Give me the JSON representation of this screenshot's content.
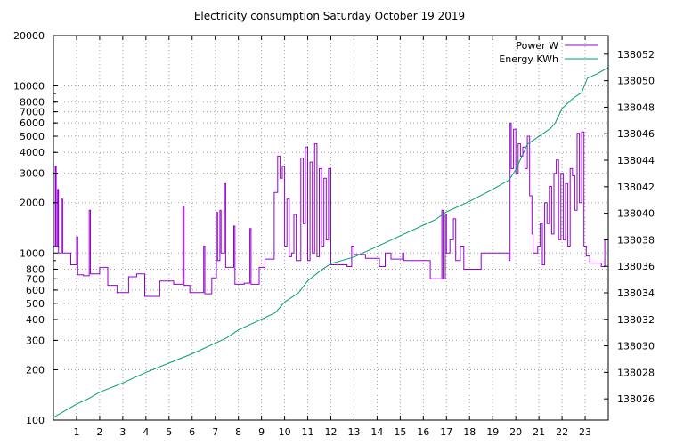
{
  "chart_data": {
    "type": "line",
    "title": "Electricity consumption Saturday October 19 2019",
    "xlabel": "",
    "ylabel": "",
    "y2label": "",
    "grid": true,
    "legend_position": "top-right",
    "xlim": [
      0,
      24
    ],
    "ylim": [
      100,
      20000
    ],
    "y_scale": "log",
    "y2lim": [
      138024.4,
      138053.4
    ],
    "x_ticks": [
      1,
      2,
      3,
      4,
      5,
      6,
      7,
      8,
      9,
      10,
      11,
      12,
      13,
      14,
      15,
      16,
      17,
      18,
      19,
      20,
      21,
      22,
      23
    ],
    "y_ticks": [
      {
        "value": 100,
        "label": "100"
      },
      {
        "value": 200,
        "label": "200"
      },
      {
        "value": 300,
        "label": "300"
      },
      {
        "value": 400,
        "label": "400"
      },
      {
        "value": 500,
        "label": "500"
      },
      {
        "value": 600,
        "label": "600"
      },
      {
        "value": 700,
        "label": "700"
      },
      {
        "value": 800,
        "label": "800"
      },
      {
        "value": 1000,
        "label": "1000"
      },
      {
        "value": 2000,
        "label": "2000"
      },
      {
        "value": 3000,
        "label": "3000"
      },
      {
        "value": 4000,
        "label": "4000"
      },
      {
        "value": 5000,
        "label": "5000"
      },
      {
        "value": 6000,
        "label": "6000"
      },
      {
        "value": 7000,
        "label": "7000"
      },
      {
        "value": 8000,
        "label": "8000"
      },
      {
        "value": 10000,
        "label": "10000"
      },
      {
        "value": 20000,
        "label": "20000"
      }
    ],
    "y2_ticks": [
      138026,
      138028,
      138030,
      138032,
      138034,
      138036,
      138038,
      138040,
      138042,
      138044,
      138046,
      138048,
      138050,
      138052
    ],
    "series": [
      {
        "name": "Power W",
        "axis": "left",
        "color": "#9400d3",
        "style": "step",
        "points": [
          [
            0.0,
            1100
          ],
          [
            0.08,
            3300
          ],
          [
            0.12,
            1100
          ],
          [
            0.18,
            2400
          ],
          [
            0.22,
            1000
          ],
          [
            0.35,
            2100
          ],
          [
            0.4,
            1000
          ],
          [
            0.55,
            1000
          ],
          [
            0.75,
            850
          ],
          [
            1.0,
            1250
          ],
          [
            1.05,
            740
          ],
          [
            1.3,
            730
          ],
          [
            1.55,
            1800
          ],
          [
            1.6,
            750
          ],
          [
            2.0,
            820
          ],
          [
            2.35,
            640
          ],
          [
            2.75,
            580
          ],
          [
            3.25,
            720
          ],
          [
            3.6,
            750
          ],
          [
            3.95,
            550
          ],
          [
            4.6,
            680
          ],
          [
            5.2,
            650
          ],
          [
            5.6,
            1900
          ],
          [
            5.65,
            640
          ],
          [
            5.9,
            580
          ],
          [
            6.5,
            1100
          ],
          [
            6.55,
            570
          ],
          [
            6.85,
            710
          ],
          [
            7.05,
            1750
          ],
          [
            7.1,
            900
          ],
          [
            7.2,
            1800
          ],
          [
            7.25,
            1000
          ],
          [
            7.4,
            2600
          ],
          [
            7.45,
            820
          ],
          [
            7.8,
            1450
          ],
          [
            7.85,
            650
          ],
          [
            8.25,
            660
          ],
          [
            8.5,
            1400
          ],
          [
            8.55,
            650
          ],
          [
            8.9,
            820
          ],
          [
            9.15,
            920
          ],
          [
            9.55,
            2300
          ],
          [
            9.7,
            3800
          ],
          [
            9.8,
            2800
          ],
          [
            9.9,
            3300
          ],
          [
            10.0,
            1100
          ],
          [
            10.1,
            2100
          ],
          [
            10.2,
            950
          ],
          [
            10.3,
            1000
          ],
          [
            10.4,
            1700
          ],
          [
            10.5,
            900
          ],
          [
            10.7,
            3700
          ],
          [
            10.8,
            1500
          ],
          [
            10.9,
            4300
          ],
          [
            11.0,
            900
          ],
          [
            11.1,
            3500
          ],
          [
            11.2,
            1000
          ],
          [
            11.3,
            4500
          ],
          [
            11.4,
            950
          ],
          [
            11.5,
            3200
          ],
          [
            11.6,
            1100
          ],
          [
            11.7,
            2800
          ],
          [
            11.8,
            1200
          ],
          [
            11.9,
            3200
          ],
          [
            12.0,
            850
          ],
          [
            12.7,
            830
          ],
          [
            12.9,
            1100
          ],
          [
            13.0,
            980
          ],
          [
            13.5,
            930
          ],
          [
            14.1,
            830
          ],
          [
            14.35,
            1000
          ],
          [
            14.6,
            920
          ],
          [
            15.1,
            1000
          ],
          [
            15.15,
            900
          ],
          [
            15.6,
            900
          ],
          [
            16.1,
            900
          ],
          [
            16.3,
            700
          ],
          [
            16.8,
            1800
          ],
          [
            16.85,
            700
          ],
          [
            16.95,
            1700
          ],
          [
            17.0,
            1000
          ],
          [
            17.15,
            1200
          ],
          [
            17.3,
            1600
          ],
          [
            17.4,
            900
          ],
          [
            17.6,
            1100
          ],
          [
            17.75,
            800
          ],
          [
            18.5,
            1000
          ],
          [
            19.2,
            1000
          ],
          [
            19.65,
            1000
          ],
          [
            19.7,
            900
          ],
          [
            19.75,
            6000
          ],
          [
            19.8,
            3200
          ],
          [
            19.9,
            5500
          ],
          [
            20.0,
            3000
          ],
          [
            20.1,
            4500
          ],
          [
            20.2,
            3800
          ],
          [
            20.3,
            4300
          ],
          [
            20.4,
            3200
          ],
          [
            20.5,
            5000
          ],
          [
            20.6,
            2200
          ],
          [
            20.7,
            1300
          ],
          [
            20.75,
            1000
          ],
          [
            20.95,
            1100
          ],
          [
            21.05,
            1500
          ],
          [
            21.15,
            850
          ],
          [
            21.25,
            2000
          ],
          [
            21.35,
            1500
          ],
          [
            21.45,
            2500
          ],
          [
            21.55,
            1300
          ],
          [
            21.65,
            3000
          ],
          [
            21.75,
            3600
          ],
          [
            21.85,
            1200
          ],
          [
            21.95,
            3000
          ],
          [
            22.05,
            1200
          ],
          [
            22.15,
            2600
          ],
          [
            22.25,
            1100
          ],
          [
            22.35,
            3200
          ],
          [
            22.45,
            2900
          ],
          [
            22.55,
            1800
          ],
          [
            22.65,
            5200
          ],
          [
            22.75,
            2000
          ],
          [
            22.85,
            5300
          ],
          [
            22.95,
            1100
          ],
          [
            23.05,
            960
          ],
          [
            23.2,
            870
          ],
          [
            23.7,
            830
          ],
          [
            23.85,
            1200
          ],
          [
            24.0,
            1200
          ]
        ]
      },
      {
        "name": "Energy KWh",
        "axis": "right",
        "color": "#009e73",
        "style": "line",
        "points": [
          [
            0.0,
            138024.6
          ],
          [
            0.5,
            138025.1
          ],
          [
            1.0,
            138025.6
          ],
          [
            1.5,
            138026.0
          ],
          [
            2.0,
            138026.5
          ],
          [
            3.0,
            138027.2
          ],
          [
            4.0,
            138028.0
          ],
          [
            5.0,
            138028.7
          ],
          [
            6.0,
            138029.4
          ],
          [
            7.0,
            138030.2
          ],
          [
            7.5,
            138030.6
          ],
          [
            8.0,
            138031.2
          ],
          [
            9.0,
            138032.0
          ],
          [
            9.6,
            138032.5
          ],
          [
            10.0,
            138033.3
          ],
          [
            10.6,
            138034.0
          ],
          [
            11.0,
            138034.9
          ],
          [
            11.5,
            138035.6
          ],
          [
            12.0,
            138036.2
          ],
          [
            13.0,
            138036.7
          ],
          [
            14.0,
            138037.5
          ],
          [
            15.0,
            138038.3
          ],
          [
            16.0,
            138039.1
          ],
          [
            16.5,
            138039.5
          ],
          [
            17.0,
            138040.1
          ],
          [
            18.0,
            138040.9
          ],
          [
            19.0,
            138041.8
          ],
          [
            19.7,
            138042.5
          ],
          [
            20.0,
            138043.3
          ],
          [
            20.5,
            138045.2
          ],
          [
            21.0,
            138045.8
          ],
          [
            21.5,
            138046.4
          ],
          [
            21.7,
            138046.8
          ],
          [
            22.0,
            138047.9
          ],
          [
            22.5,
            138048.7
          ],
          [
            22.85,
            138049.1
          ],
          [
            23.1,
            138050.2
          ],
          [
            23.5,
            138050.5
          ],
          [
            24.0,
            138051.0
          ]
        ]
      }
    ]
  }
}
